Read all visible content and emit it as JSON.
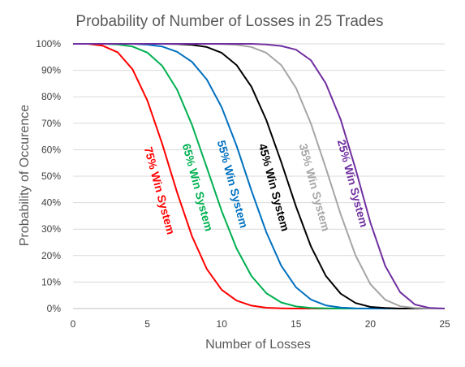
{
  "chart_data": {
    "type": "line",
    "title": "Probability of Number of Losses in 25 Trades",
    "xlabel": "Number of Losses",
    "ylabel": "Probability of Occurence",
    "xlim": [
      0,
      25
    ],
    "ylim": [
      0,
      1
    ],
    "x_ticks": [
      "0",
      "5",
      "10",
      "15",
      "20",
      "25"
    ],
    "y_ticks": [
      "0%",
      "10%",
      "20%",
      "30%",
      "40%",
      "50%",
      "60%",
      "70%",
      "80%",
      "90%",
      "100%"
    ],
    "grid": "horizontal",
    "x": [
      0,
      1,
      2,
      3,
      4,
      5,
      6,
      7,
      8,
      9,
      10,
      11,
      12,
      13,
      14,
      15,
      16,
      17,
      18,
      19,
      20,
      21,
      22,
      23,
      24,
      25
    ],
    "series": [
      {
        "name": "75% Win System",
        "color": "#ff0000",
        "values": [
          1,
          1,
          0.993,
          0.968,
          0.904,
          0.786,
          0.622,
          0.439,
          0.273,
          0.149,
          0.071,
          0.03,
          0.011,
          0.003,
          0.001,
          0,
          0,
          0,
          0,
          0,
          0,
          0,
          0,
          0,
          0,
          0
        ]
      },
      {
        "name": "65% Win System",
        "color": "#00b050",
        "values": [
          1,
          1,
          1,
          0.998,
          0.99,
          0.967,
          0.917,
          0.827,
          0.694,
          0.532,
          0.368,
          0.227,
          0.123,
          0.058,
          0.023,
          0.008,
          0.002,
          0.001,
          0,
          0,
          0,
          0,
          0,
          0,
          0,
          0
        ]
      },
      {
        "name": "55% Win System",
        "color": "#0070c0",
        "values": [
          1,
          1,
          1,
          1,
          1,
          0.997,
          0.99,
          0.97,
          0.932,
          0.865,
          0.76,
          0.615,
          0.446,
          0.288,
          0.162,
          0.08,
          0.034,
          0.012,
          0.004,
          0.001,
          0,
          0,
          0,
          0,
          0,
          0
        ]
      },
      {
        "name": "45% Win System",
        "color": "#000000",
        "values": [
          1,
          1,
          1,
          1,
          1,
          1,
          1,
          0.999,
          0.996,
          0.988,
          0.966,
          0.92,
          0.838,
          0.712,
          0.554,
          0.385,
          0.235,
          0.124,
          0.056,
          0.021,
          0.006,
          0.002,
          0,
          0,
          0,
          0
        ]
      },
      {
        "name": "35% Win System",
        "color": "#a6a6a6",
        "values": [
          1,
          1,
          1,
          1,
          1,
          1,
          1,
          1,
          1,
          1,
          0.999,
          0.996,
          0.988,
          0.966,
          0.92,
          0.833,
          0.699,
          0.532,
          0.356,
          0.201,
          0.092,
          0.033,
          0.009,
          0.002,
          0,
          0
        ]
      },
      {
        "name": "25% Win System",
        "color": "#7030a0",
        "values": [
          1,
          1,
          1,
          1,
          1,
          1,
          1,
          1,
          1,
          1,
          1,
          1,
          1,
          0.998,
          0.992,
          0.978,
          0.938,
          0.851,
          0.714,
          0.528,
          0.325,
          0.161,
          0.062,
          0.015,
          0.002,
          0
        ]
      }
    ]
  }
}
